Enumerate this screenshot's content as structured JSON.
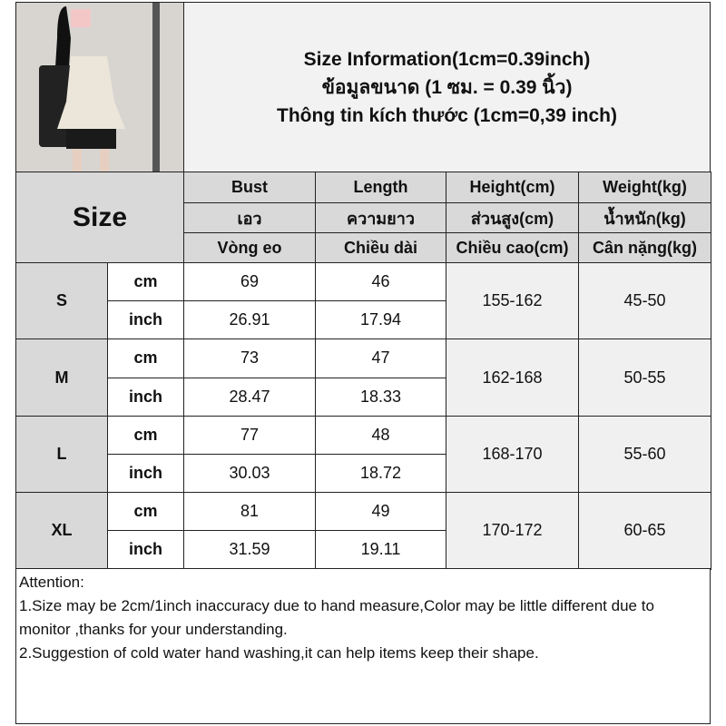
{
  "title": {
    "line1": "Size Information(1cm=0.39inch)",
    "line2": "ข้อมูลขนาด (1 ซม. = 0.39 นิ้ว)",
    "line3": "Thông tin kích thước (1cm=0,39 inch)"
  },
  "size_label": "Size",
  "headers": [
    [
      "Bust",
      "เอว",
      "Vòng eo"
    ],
    [
      "Length",
      "ความยาว",
      "Chiều dài"
    ],
    [
      "Height(cm)",
      "ส่วนสูง(cm)",
      "Chiều cao(cm)"
    ],
    [
      "Weight(kg)",
      "น้ำหนัก(kg)",
      "Cân nặng(kg)"
    ]
  ],
  "units": [
    "cm",
    "inch"
  ],
  "rows": [
    {
      "size": "S",
      "cm": [
        "69",
        "46"
      ],
      "inch": [
        "26.91",
        "17.94"
      ],
      "height": "155-162",
      "weight": "45-50"
    },
    {
      "size": "M",
      "cm": [
        "73",
        "47"
      ],
      "inch": [
        "28.47",
        "18.33"
      ],
      "height": "162-168",
      "weight": "50-55"
    },
    {
      "size": "L",
      "cm": [
        "77",
        "48"
      ],
      "inch": [
        "30.03",
        "18.72"
      ],
      "height": "168-170",
      "weight": "55-60"
    },
    {
      "size": "XL",
      "cm": [
        "81",
        "49"
      ],
      "inch": [
        "31.59",
        "19.11"
      ],
      "height": "170-172",
      "weight": "60-65"
    }
  ],
  "attention": [
    "Attention:",
    "1.Size may be 2cm/1inch inaccuracy due to hand measure,Color may be little different due to monitor ,thanks for your understanding.",
    "2.Suggestion of cold water hand washing,it can help items keep their shape."
  ]
}
